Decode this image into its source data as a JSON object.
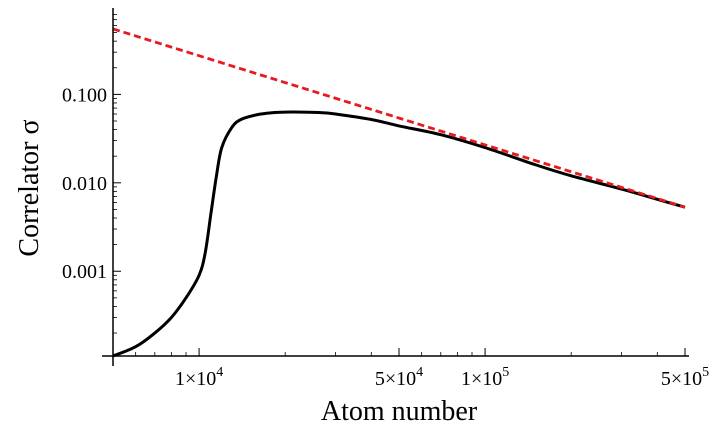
{
  "chart_data": {
    "type": "line",
    "xlabel": "Atom number",
    "ylabel": "Correlator σ",
    "x_scale": "log",
    "y_scale": "log",
    "xlim": [
      5000,
      500000
    ],
    "ylim": [
      0.00011,
      0.9
    ],
    "grid": false,
    "x_ticks": [
      {
        "value": 10000,
        "label": "1×10",
        "exp": "4"
      },
      {
        "value": 50000,
        "label": "5×10",
        "exp": "4"
      },
      {
        "value": 100000,
        "label": "1×10",
        "exp": "5"
      },
      {
        "value": 500000,
        "label": "5×10",
        "exp": "5"
      }
    ],
    "x_minor_ticks": [
      6000,
      7000,
      8000,
      9000,
      20000,
      30000,
      40000,
      60000,
      70000,
      80000,
      90000,
      200000,
      300000,
      400000
    ],
    "y_ticks": [
      {
        "value": 0.001,
        "label": "0.001"
      },
      {
        "value": 0.01,
        "label": "0.010"
      },
      {
        "value": 0.1,
        "label": "0.100"
      }
    ],
    "y_minor_ticks": [
      0.0002,
      0.0003,
      0.0004,
      0.0005,
      0.0006,
      0.0007,
      0.0008,
      0.0009,
      0.002,
      0.003,
      0.004,
      0.005,
      0.006,
      0.007,
      0.008,
      0.009,
      0.02,
      0.03,
      0.04,
      0.05,
      0.06,
      0.07,
      0.08,
      0.09,
      0.2,
      0.3,
      0.4,
      0.5,
      0.6,
      0.7,
      0.8
    ],
    "series": [
      {
        "color": "#000000",
        "style": "solid",
        "x": [
          5000,
          6000,
          7000,
          8000,
          9000,
          10000,
          10500,
          11000,
          11500,
          12000,
          13000,
          14000,
          16000,
          18000,
          20000,
          23000,
          27000,
          30000,
          40000,
          50000,
          70000,
          100000,
          150000,
          200000,
          300000,
          400000,
          500000
        ],
        "y": [
          0.00011,
          0.00014,
          0.0002,
          0.0003,
          0.0005,
          0.0009,
          0.0016,
          0.0045,
          0.012,
          0.025,
          0.042,
          0.052,
          0.059,
          0.062,
          0.063,
          0.063,
          0.062,
          0.06,
          0.052,
          0.044,
          0.035,
          0.025,
          0.016,
          0.012,
          0.0085,
          0.0065,
          0.0053
        ]
      },
      {
        "color": "#e8191f",
        "style": "dashed",
        "x": [
          5000,
          500000
        ],
        "y": [
          0.55,
          0.0053
        ]
      }
    ]
  }
}
